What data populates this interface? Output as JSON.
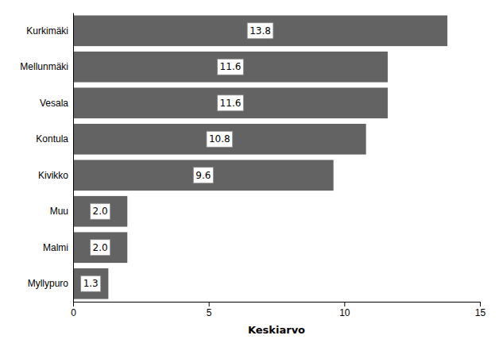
{
  "chart_data": {
    "type": "bar",
    "orientation": "horizontal",
    "categories": [
      "Kurkimäki",
      "Mellunmäki",
      "Vesala",
      "Kontula",
      "Kivikko",
      "Muu",
      "Malmi",
      "Myllypuro"
    ],
    "values": [
      13.8,
      11.6,
      11.6,
      10.8,
      9.6,
      2.0,
      2.0,
      1.3
    ],
    "value_labels": [
      "13.8",
      "11.6",
      "11.6",
      "10.8",
      "9.6",
      "2.0",
      "2.0",
      "1.3"
    ],
    "color": "#636363",
    "xlabel": "Keskiarvo",
    "xlim": [
      0,
      15
    ],
    "xticks": [
      0,
      5,
      10,
      15
    ],
    "grid": false,
    "data_labels": true
  }
}
